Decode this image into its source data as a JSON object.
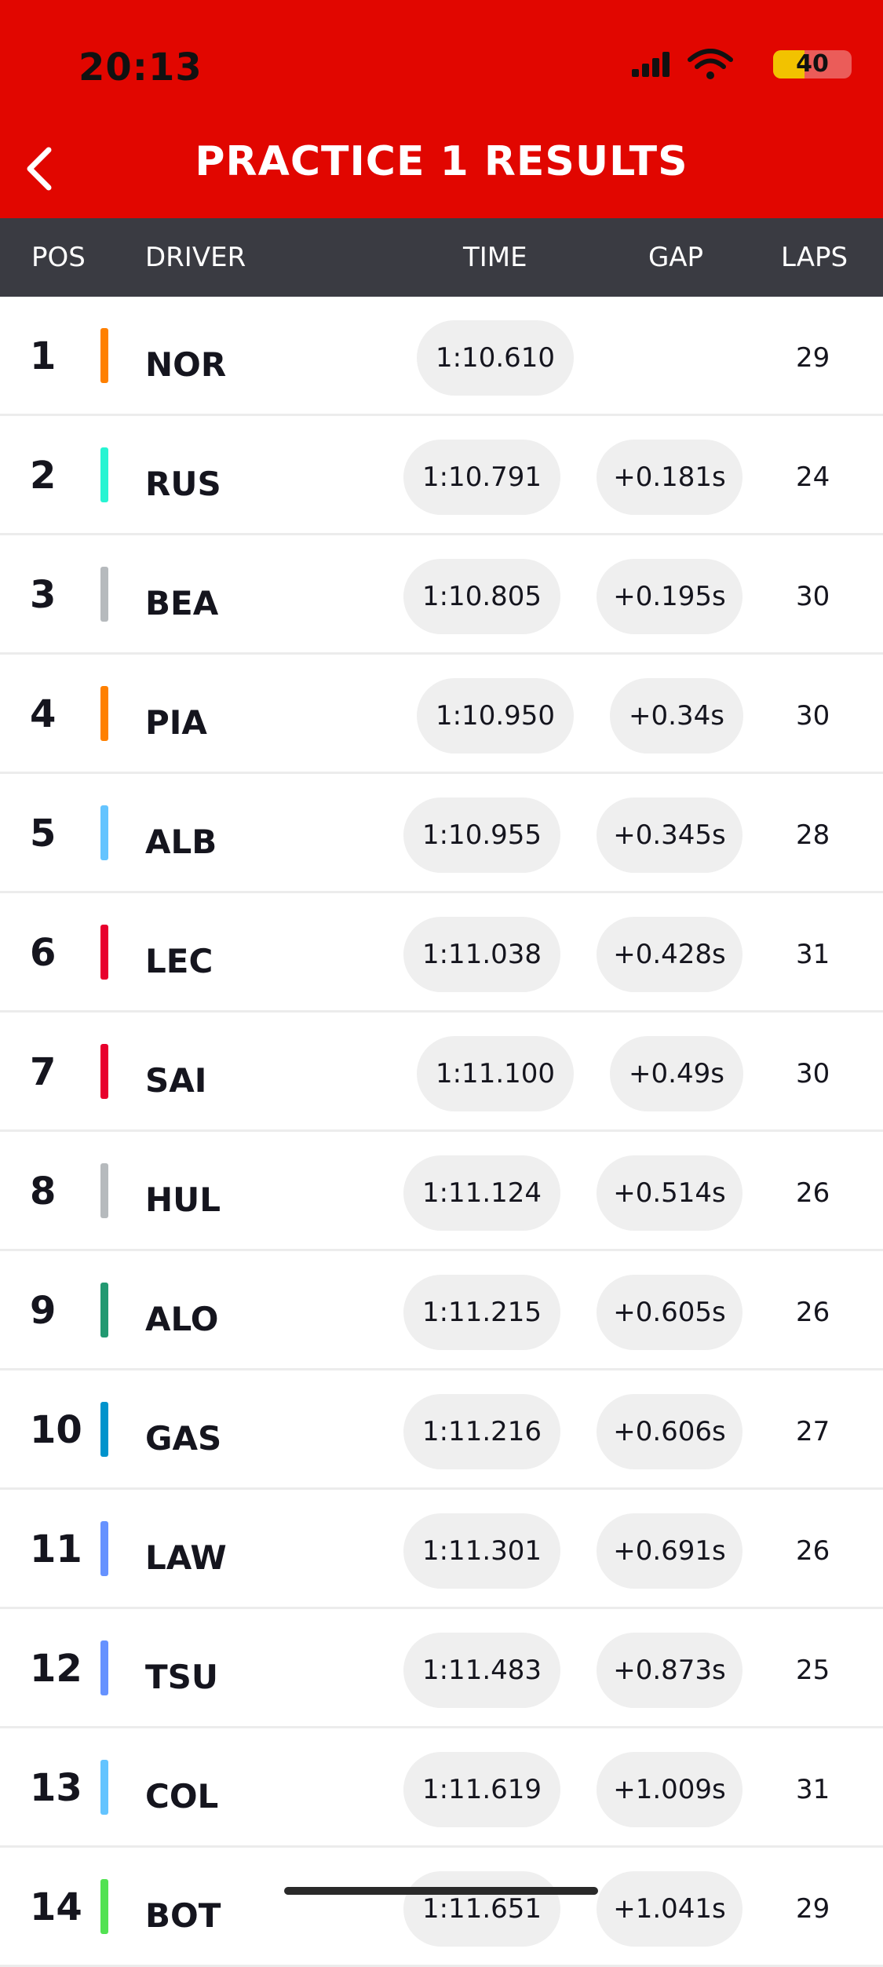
{
  "status_bar": {
    "time": "20:13",
    "battery": "40",
    "battery_level": 0.4
  },
  "header": {
    "title": "PRACTICE 1 RESULTS",
    "back_icon": "chevron-left-icon"
  },
  "columns": {
    "pos": "POS",
    "driver": "DRIVER",
    "time": "TIME",
    "gap": "GAP",
    "laps": "LAPS"
  },
  "results": [
    {
      "pos": "1",
      "driver": "NOR",
      "time": "1:10.610",
      "gap": "",
      "laps": "29",
      "team_color": "#ff8000"
    },
    {
      "pos": "2",
      "driver": "RUS",
      "time": "1:10.791",
      "gap": "+0.181s",
      "laps": "24",
      "team_color": "#27f4d2"
    },
    {
      "pos": "3",
      "driver": "BEA",
      "time": "1:10.805",
      "gap": "+0.195s",
      "laps": "30",
      "team_color": "#b6babd"
    },
    {
      "pos": "4",
      "driver": "PIA",
      "time": "1:10.950",
      "gap": "+0.34s",
      "laps": "30",
      "team_color": "#ff8000"
    },
    {
      "pos": "5",
      "driver": "ALB",
      "time": "1:10.955",
      "gap": "+0.345s",
      "laps": "28",
      "team_color": "#64c4ff"
    },
    {
      "pos": "6",
      "driver": "LEC",
      "time": "1:11.038",
      "gap": "+0.428s",
      "laps": "31",
      "team_color": "#e8002d"
    },
    {
      "pos": "7",
      "driver": "SAI",
      "time": "1:11.100",
      "gap": "+0.49s",
      "laps": "30",
      "team_color": "#e8002d"
    },
    {
      "pos": "8",
      "driver": "HUL",
      "time": "1:11.124",
      "gap": "+0.514s",
      "laps": "26",
      "team_color": "#b6babd"
    },
    {
      "pos": "9",
      "driver": "ALO",
      "time": "1:11.215",
      "gap": "+0.605s",
      "laps": "26",
      "team_color": "#229971"
    },
    {
      "pos": "10",
      "driver": "GAS",
      "time": "1:11.216",
      "gap": "+0.606s",
      "laps": "27",
      "team_color": "#0093cc"
    },
    {
      "pos": "11",
      "driver": "LAW",
      "time": "1:11.301",
      "gap": "+0.691s",
      "laps": "26",
      "team_color": "#6692ff"
    },
    {
      "pos": "12",
      "driver": "TSU",
      "time": "1:11.483",
      "gap": "+0.873s",
      "laps": "25",
      "team_color": "#6692ff"
    },
    {
      "pos": "13",
      "driver": "COL",
      "time": "1:11.619",
      "gap": "+1.009s",
      "laps": "31",
      "team_color": "#64c4ff"
    },
    {
      "pos": "14",
      "driver": "BOT",
      "time": "1:11.651",
      "gap": "+1.041s",
      "laps": "29",
      "team_color": "#52e252"
    }
  ]
}
